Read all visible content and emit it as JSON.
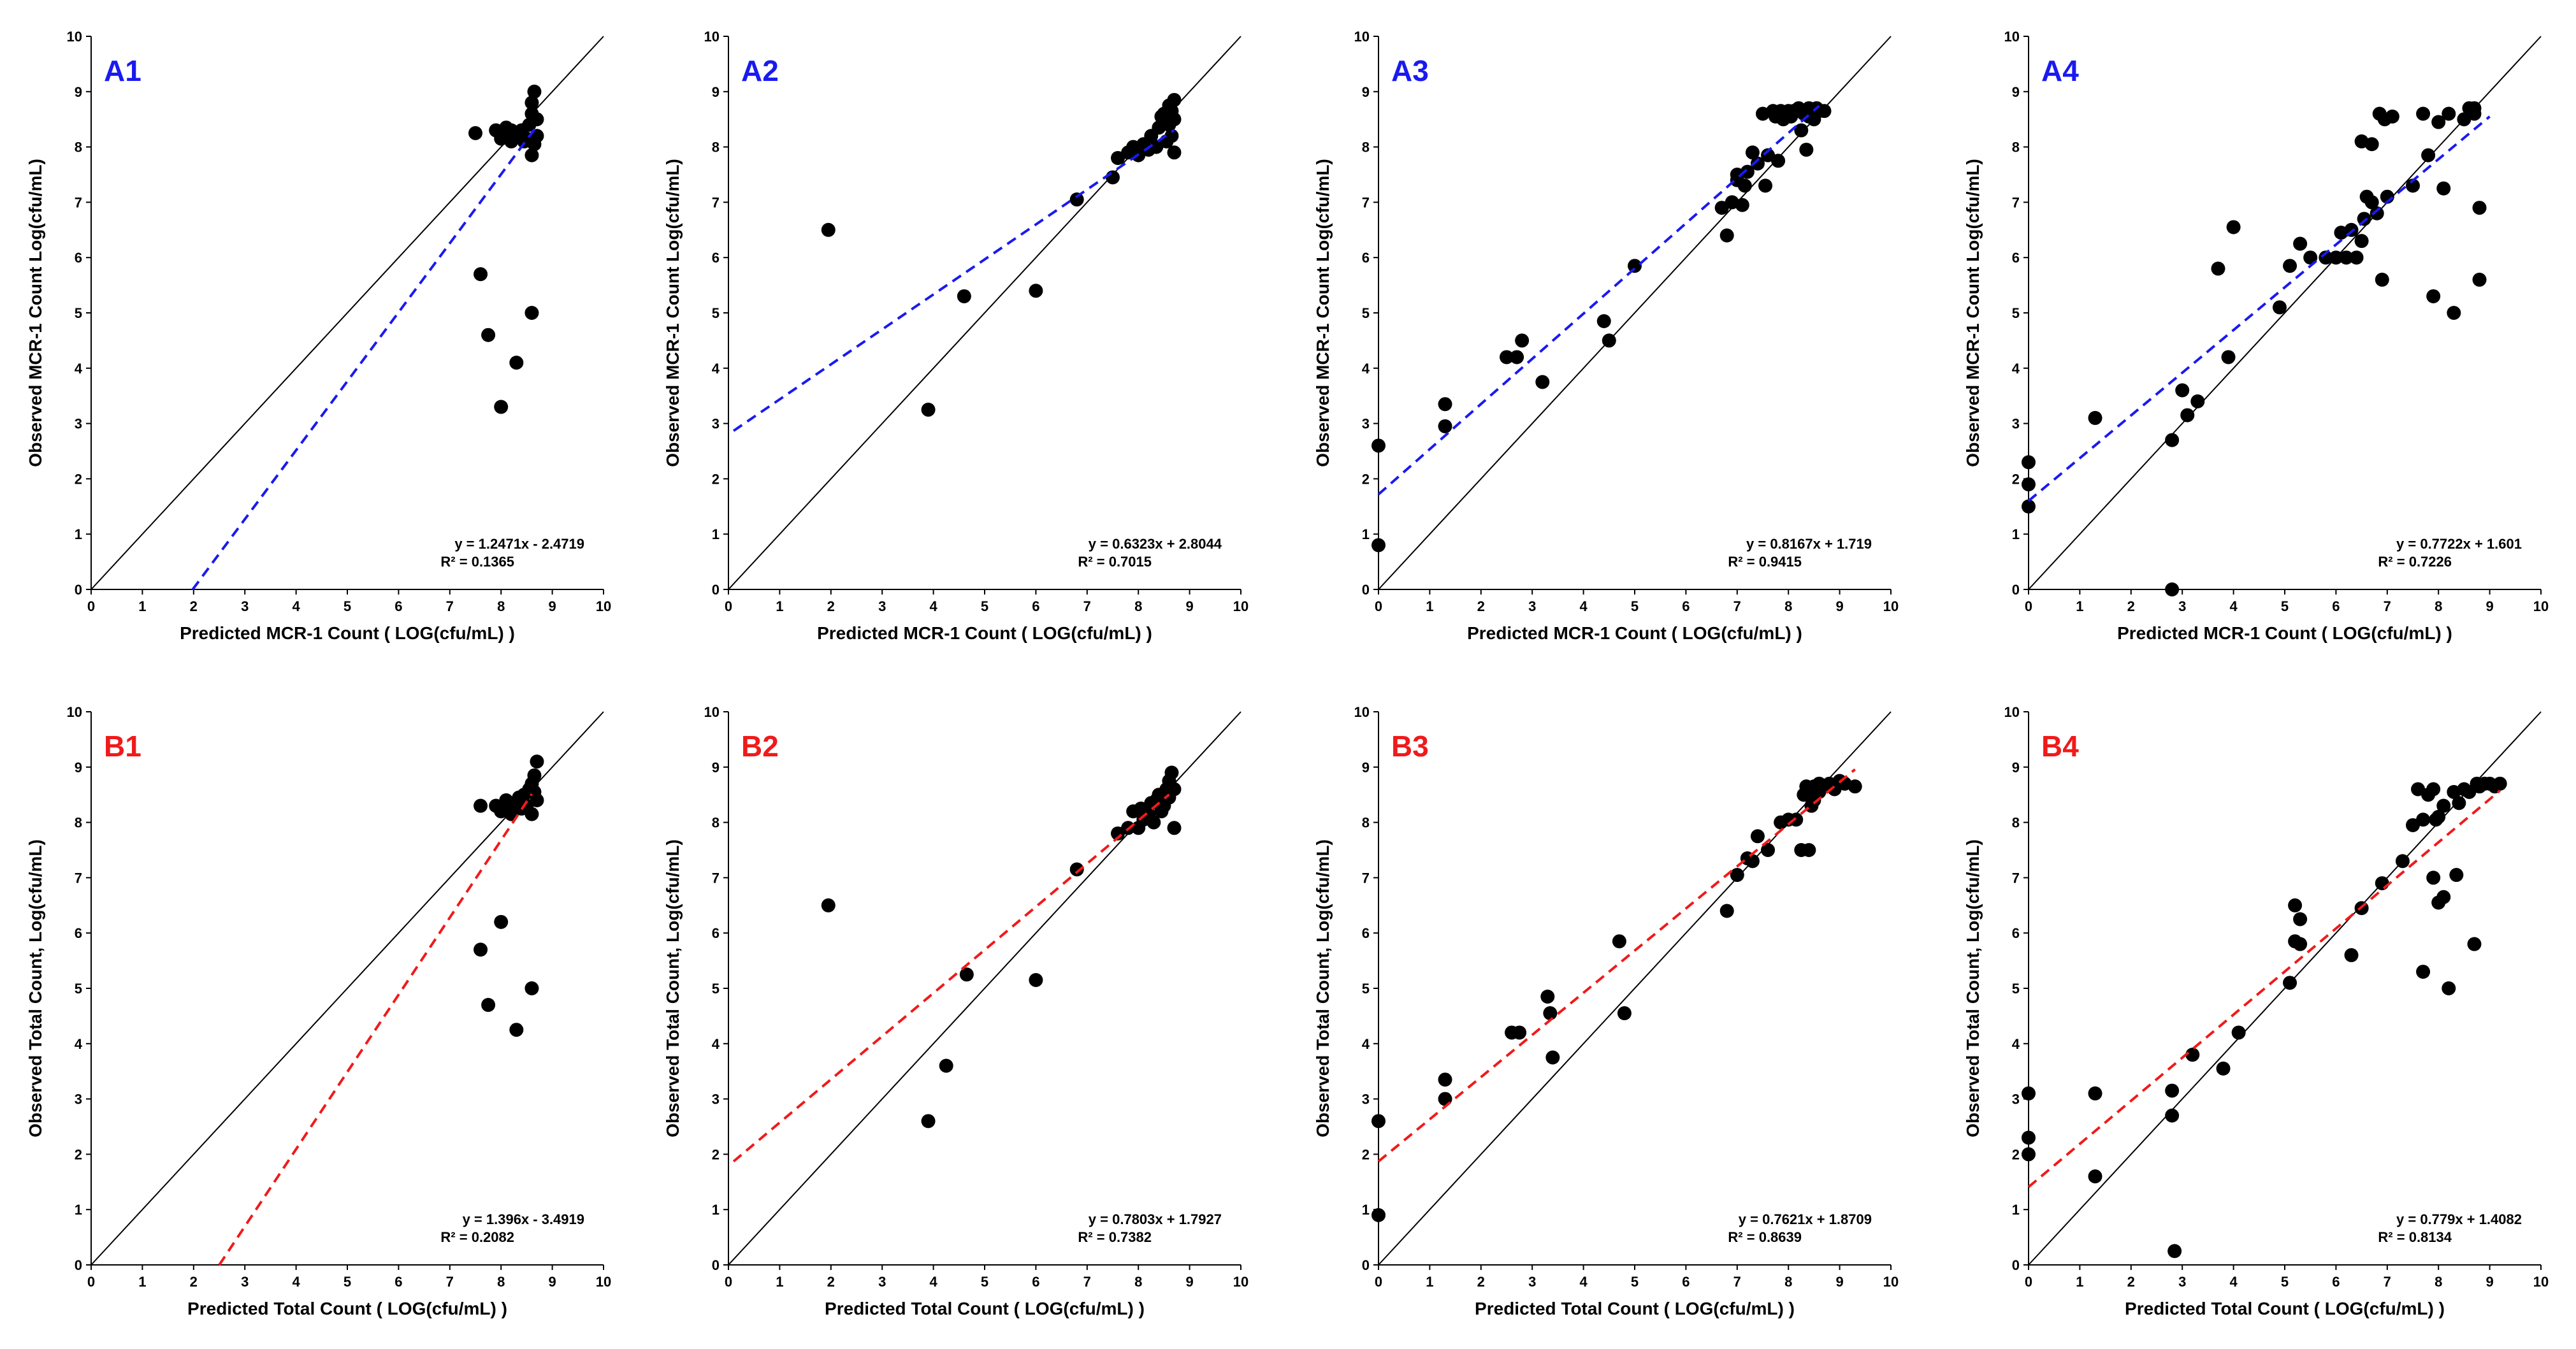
{
  "colors": {
    "row_a": "#1a1af0",
    "row_b": "#f01a1a",
    "points": "#000000",
    "identity_line": "#000000"
  },
  "chart_data": [
    {
      "type": "scatter",
      "panel": "A1",
      "row": "A",
      "xlabel": "Predicted MCR-1 Count ( LOG(cfu/mL) )",
      "ylabel": "Observed MCR-1 Count Log(cfu/mL)",
      "xlim": [
        0,
        10
      ],
      "ylim": [
        0,
        10
      ],
      "ticks": [
        "0",
        "1",
        "2",
        "3",
        "4",
        "5",
        "6",
        "7",
        "8",
        "9",
        "10"
      ],
      "equation": "y = 1.2471x - 2.4719",
      "r2": "R² = 0.1365",
      "fit": {
        "slope": 1.2471,
        "intercept": -2.4719,
        "x_range": [
          1.98,
          8.7
        ]
      },
      "points": [
        [
          7.5,
          8.25
        ],
        [
          7.9,
          8.3
        ],
        [
          8.0,
          8.15
        ],
        [
          8.1,
          8.35
        ],
        [
          8.2,
          8.1
        ],
        [
          8.3,
          8.2
        ],
        [
          8.4,
          8.3
        ],
        [
          8.5,
          8.15
        ],
        [
          8.55,
          8.4
        ],
        [
          8.6,
          8.6
        ],
        [
          8.6,
          8.8
        ],
        [
          8.65,
          9.0
        ],
        [
          8.7,
          8.5
        ],
        [
          8.7,
          8.2
        ],
        [
          8.65,
          8.05
        ],
        [
          8.6,
          7.85
        ],
        [
          8.45,
          8.1
        ],
        [
          8.2,
          8.3
        ],
        [
          8.0,
          8.2
        ],
        [
          7.6,
          5.7
        ],
        [
          7.75,
          4.6
        ],
        [
          8.6,
          5.0
        ],
        [
          8.3,
          4.1
        ],
        [
          8.0,
          3.3
        ]
      ]
    },
    {
      "type": "scatter",
      "panel": "A2",
      "row": "A",
      "xlabel": "Predicted MCR-1 Count ( LOG(cfu/mL) )",
      "ylabel": "Observed MCR-1 Count Log(cfu/mL)",
      "xlim": [
        0,
        10
      ],
      "ylim": [
        0,
        10
      ],
      "ticks": [
        "0",
        "1",
        "2",
        "3",
        "4",
        "5",
        "6",
        "7",
        "8",
        "9",
        "10"
      ],
      "equation": "y = 0.6323x + 2.8044",
      "r2": "R² = 0.7015",
      "fit": {
        "slope": 0.6323,
        "intercept": 2.8044,
        "x_range": [
          0.1,
          8.7
        ]
      },
      "points": [
        [
          1.95,
          6.5
        ],
        [
          3.9,
          3.25
        ],
        [
          4.6,
          5.3
        ],
        [
          6.0,
          5.4
        ],
        [
          6.8,
          7.05
        ],
        [
          7.5,
          7.45
        ],
        [
          7.6,
          7.8
        ],
        [
          7.8,
          7.9
        ],
        [
          7.9,
          8.0
        ],
        [
          8.0,
          7.85
        ],
        [
          8.1,
          8.05
        ],
        [
          8.2,
          7.95
        ],
        [
          8.25,
          8.2
        ],
        [
          8.35,
          8.0
        ],
        [
          8.4,
          8.35
        ],
        [
          8.45,
          8.55
        ],
        [
          8.5,
          8.6
        ],
        [
          8.55,
          8.1
        ],
        [
          8.6,
          8.4
        ],
        [
          8.6,
          8.75
        ],
        [
          8.65,
          8.2
        ],
        [
          8.7,
          7.9
        ],
        [
          8.7,
          8.5
        ],
        [
          8.7,
          8.85
        ],
        [
          8.65,
          8.65
        ]
      ]
    },
    {
      "type": "scatter",
      "panel": "A3",
      "row": "A",
      "xlabel": "Predicted MCR-1 Count ( LOG(cfu/mL) )",
      "ylabel": "Observed MCR-1 Count Log(cfu/mL)",
      "xlim": [
        0,
        10
      ],
      "ylim": [
        0,
        10
      ],
      "ticks": [
        "0",
        "1",
        "2",
        "3",
        "4",
        "5",
        "6",
        "7",
        "8",
        "9",
        "10"
      ],
      "equation": "y = 0.8167x + 1.719",
      "r2": "R² = 0.9415",
      "fit": {
        "slope": 0.8167,
        "intercept": 1.719,
        "x_range": [
          0.0,
          8.6
        ]
      },
      "points": [
        [
          0.0,
          2.6
        ],
        [
          0.0,
          0.8
        ],
        [
          1.3,
          3.35
        ],
        [
          1.3,
          2.95
        ],
        [
          2.5,
          4.2
        ],
        [
          2.7,
          4.2
        ],
        [
          2.8,
          4.5
        ],
        [
          3.2,
          3.75
        ],
        [
          4.4,
          4.85
        ],
        [
          4.5,
          4.5
        ],
        [
          5.0,
          5.85
        ],
        [
          6.7,
          6.9
        ],
        [
          6.8,
          6.4
        ],
        [
          6.9,
          7.0
        ],
        [
          7.0,
          7.5
        ],
        [
          7.0,
          7.4
        ],
        [
          7.1,
          6.95
        ],
        [
          7.15,
          7.3
        ],
        [
          7.2,
          7.55
        ],
        [
          7.3,
          7.9
        ],
        [
          7.4,
          7.7
        ],
        [
          7.5,
          8.6
        ],
        [
          7.55,
          7.3
        ],
        [
          7.6,
          7.85
        ],
        [
          7.7,
          8.65
        ],
        [
          7.75,
          8.55
        ],
        [
          7.8,
          7.75
        ],
        [
          7.85,
          8.65
        ],
        [
          7.9,
          8.5
        ],
        [
          8.0,
          8.65
        ],
        [
          8.05,
          8.55
        ],
        [
          8.1,
          8.65
        ],
        [
          8.2,
          8.7
        ],
        [
          8.25,
          8.3
        ],
        [
          8.3,
          8.6
        ],
        [
          8.35,
          7.95
        ],
        [
          8.4,
          8.7
        ],
        [
          8.5,
          8.5
        ],
        [
          8.55,
          8.7
        ],
        [
          8.6,
          8.65
        ],
        [
          8.7,
          8.65
        ],
        [
          8.4,
          8.55
        ]
      ]
    },
    {
      "type": "scatter",
      "panel": "A4",
      "row": "A",
      "xlabel": "Predicted MCR-1 Count ( LOG(cfu/mL) )",
      "ylabel": "Observed MCR-1 Count Log(cfu/mL)",
      "xlim": [
        0,
        10
      ],
      "ylim": [
        0,
        10
      ],
      "ticks": [
        "0",
        "1",
        "2",
        "3",
        "4",
        "5",
        "6",
        "7",
        "8",
        "9",
        "10"
      ],
      "equation": "y = 0.7722x + 1.601",
      "r2": "R² = 0.7226",
      "fit": {
        "slope": 0.7722,
        "intercept": 1.601,
        "x_range": [
          0.0,
          9.0
        ]
      },
      "points": [
        [
          0.0,
          2.3
        ],
        [
          0.0,
          1.9
        ],
        [
          0.0,
          1.5
        ],
        [
          1.3,
          3.1
        ],
        [
          2.8,
          2.7
        ],
        [
          2.8,
          0.0
        ],
        [
          3.0,
          3.6
        ],
        [
          3.1,
          3.15
        ],
        [
          3.3,
          3.4
        ],
        [
          3.7,
          5.8
        ],
        [
          3.9,
          4.2
        ],
        [
          4.0,
          6.55
        ],
        [
          4.9,
          5.1
        ],
        [
          5.1,
          5.85
        ],
        [
          5.3,
          6.25
        ],
        [
          5.5,
          6.0
        ],
        [
          5.8,
          6.0
        ],
        [
          6.0,
          6.0
        ],
        [
          6.1,
          6.45
        ],
        [
          6.2,
          6.0
        ],
        [
          6.3,
          6.5
        ],
        [
          6.4,
          6.0
        ],
        [
          6.5,
          6.3
        ],
        [
          6.5,
          8.1
        ],
        [
          6.55,
          6.7
        ],
        [
          6.6,
          7.1
        ],
        [
          6.7,
          8.05
        ],
        [
          6.7,
          7.0
        ],
        [
          6.8,
          6.8
        ],
        [
          6.85,
          8.6
        ],
        [
          6.9,
          5.6
        ],
        [
          6.95,
          8.5
        ],
        [
          7.0,
          7.1
        ],
        [
          7.1,
          8.55
        ],
        [
          7.5,
          7.3
        ],
        [
          7.7,
          8.6
        ],
        [
          7.8,
          7.85
        ],
        [
          7.9,
          5.3
        ],
        [
          8.0,
          8.45
        ],
        [
          8.1,
          7.25
        ],
        [
          8.2,
          8.6
        ],
        [
          8.3,
          5.0
        ],
        [
          8.5,
          8.5
        ],
        [
          8.6,
          8.7
        ],
        [
          8.7,
          8.7
        ],
        [
          8.8,
          6.9
        ],
        [
          8.8,
          5.6
        ],
        [
          8.7,
          8.6
        ]
      ]
    },
    {
      "type": "scatter",
      "panel": "B1",
      "row": "B",
      "xlabel": "Predicted Total Count ( LOG(cfu/mL) )",
      "ylabel": "Observed Total Count, Log(cfu/mL)",
      "xlim": [
        0,
        10
      ],
      "ylim": [
        0,
        10
      ],
      "ticks": [
        "0",
        "1",
        "2",
        "3",
        "4",
        "5",
        "6",
        "7",
        "8",
        "9",
        "10"
      ],
      "equation": "y = 1.396x - 3.4919",
      "r2": "R² = 0.2082",
      "fit": {
        "slope": 1.396,
        "intercept": -3.4919,
        "x_range": [
          2.5,
          8.6
        ]
      },
      "points": [
        [
          7.6,
          8.3
        ],
        [
          7.9,
          8.3
        ],
        [
          8.0,
          8.2
        ],
        [
          8.1,
          8.4
        ],
        [
          8.2,
          8.15
        ],
        [
          8.3,
          8.35
        ],
        [
          8.4,
          8.25
        ],
        [
          8.45,
          8.5
        ],
        [
          8.5,
          8.3
        ],
        [
          8.55,
          8.6
        ],
        [
          8.6,
          8.7
        ],
        [
          8.65,
          8.85
        ],
        [
          8.7,
          9.1
        ],
        [
          8.7,
          8.4
        ],
        [
          8.65,
          8.55
        ],
        [
          8.6,
          8.15
        ],
        [
          8.35,
          8.45
        ],
        [
          8.2,
          8.3
        ],
        [
          8.0,
          6.2
        ],
        [
          7.6,
          5.7
        ],
        [
          7.75,
          4.7
        ],
        [
          8.6,
          5.0
        ],
        [
          8.3,
          4.25
        ]
      ]
    },
    {
      "type": "scatter",
      "panel": "B2",
      "row": "B",
      "xlabel": "Predicted Total Count ( LOG(cfu/mL) )",
      "ylabel": "Observed Total Count, Log(cfu/mL)",
      "xlim": [
        0,
        10
      ],
      "ylim": [
        0,
        10
      ],
      "ticks": [
        "0",
        "1",
        "2",
        "3",
        "4",
        "5",
        "6",
        "7",
        "8",
        "9",
        "10"
      ],
      "equation": "y = 0.7803x + 1.7927",
      "r2": "R² = 0.7382",
      "fit": {
        "slope": 0.7803,
        "intercept": 1.7927,
        "x_range": [
          0.1,
          8.6
        ]
      },
      "points": [
        [
          1.95,
          6.5
        ],
        [
          3.9,
          2.6
        ],
        [
          4.25,
          3.6
        ],
        [
          4.65,
          5.25
        ],
        [
          6.0,
          5.15
        ],
        [
          6.8,
          7.15
        ],
        [
          7.6,
          7.8
        ],
        [
          7.8,
          7.9
        ],
        [
          7.9,
          8.2
        ],
        [
          8.0,
          7.9
        ],
        [
          8.05,
          8.25
        ],
        [
          8.1,
          8.05
        ],
        [
          8.2,
          8.15
        ],
        [
          8.25,
          8.35
        ],
        [
          8.3,
          8.0
        ],
        [
          8.35,
          8.4
        ],
        [
          8.4,
          8.5
        ],
        [
          8.45,
          8.2
        ],
        [
          8.5,
          8.3
        ],
        [
          8.55,
          8.6
        ],
        [
          8.6,
          8.75
        ],
        [
          8.6,
          8.45
        ],
        [
          8.65,
          8.9
        ],
        [
          8.7,
          8.6
        ],
        [
          8.7,
          7.9
        ],
        [
          8.55,
          8.45
        ]
      ]
    },
    {
      "type": "scatter",
      "panel": "B3",
      "row": "B",
      "xlabel": "Predicted Total Count ( LOG(cfu/mL) )",
      "ylabel": "Observed Total Count, Log(cfu/mL)",
      "xlim": [
        0,
        10
      ],
      "ylim": [
        0,
        10
      ],
      "ticks": [
        "0",
        "1",
        "2",
        "3",
        "4",
        "5",
        "6",
        "7",
        "8",
        "9",
        "10"
      ],
      "equation": "y = 0.7621x + 1.8709",
      "r2": "R² = 0.8639",
      "fit": {
        "slope": 0.7621,
        "intercept": 1.8709,
        "x_range": [
          0.0,
          9.3
        ]
      },
      "points": [
        [
          0.0,
          2.6
        ],
        [
          0.0,
          0.9
        ],
        [
          1.3,
          3.35
        ],
        [
          1.3,
          3.0
        ],
        [
          2.6,
          4.2
        ],
        [
          2.75,
          4.2
        ],
        [
          3.3,
          4.85
        ],
        [
          3.35,
          4.55
        ],
        [
          3.4,
          3.75
        ],
        [
          4.7,
          5.85
        ],
        [
          4.8,
          4.55
        ],
        [
          6.8,
          6.4
        ],
        [
          7.0,
          7.05
        ],
        [
          7.2,
          7.35
        ],
        [
          7.3,
          7.3
        ],
        [
          7.4,
          7.75
        ],
        [
          7.6,
          7.5
        ],
        [
          7.85,
          8.0
        ],
        [
          8.0,
          8.05
        ],
        [
          8.15,
          8.05
        ],
        [
          8.25,
          7.5
        ],
        [
          8.3,
          8.5
        ],
        [
          8.35,
          8.65
        ],
        [
          8.4,
          7.5
        ],
        [
          8.45,
          8.3
        ],
        [
          8.5,
          8.65
        ],
        [
          8.55,
          8.55
        ],
        [
          8.6,
          8.7
        ],
        [
          8.7,
          8.65
        ],
        [
          8.8,
          8.7
        ],
        [
          8.9,
          8.6
        ],
        [
          9.0,
          8.75
        ],
        [
          9.1,
          8.7
        ],
        [
          9.3,
          8.65
        ],
        [
          8.6,
          8.55
        ],
        [
          8.5,
          8.4
        ]
      ]
    },
    {
      "type": "scatter",
      "panel": "B4",
      "row": "B",
      "xlabel": "Predicted Total Count ( LOG(cfu/mL) )",
      "ylabel": "Observed Total Count, Log(cfu/mL)",
      "xlim": [
        0,
        10
      ],
      "ylim": [
        0,
        10
      ],
      "ticks": [
        "0",
        "1",
        "2",
        "3",
        "4",
        "5",
        "6",
        "7",
        "8",
        "9",
        "10"
      ],
      "equation": "y = 0.779x + 1.4082",
      "r2": "R² = 0.8134",
      "fit": {
        "slope": 0.779,
        "intercept": 1.4082,
        "x_range": [
          0.0,
          9.2
        ]
      },
      "points": [
        [
          0.0,
          3.1
        ],
        [
          0.0,
          2.3
        ],
        [
          0.0,
          2.0
        ],
        [
          1.3,
          3.1
        ],
        [
          1.3,
          1.6
        ],
        [
          2.8,
          3.15
        ],
        [
          2.8,
          2.7
        ],
        [
          2.85,
          0.25
        ],
        [
          3.2,
          3.8
        ],
        [
          3.8,
          3.55
        ],
        [
          4.1,
          4.2
        ],
        [
          5.1,
          5.1
        ],
        [
          5.2,
          6.5
        ],
        [
          5.2,
          5.85
        ],
        [
          5.3,
          6.25
        ],
        [
          5.3,
          5.8
        ],
        [
          6.3,
          5.6
        ],
        [
          6.5,
          6.45
        ],
        [
          6.9,
          6.9
        ],
        [
          7.3,
          7.3
        ],
        [
          7.5,
          7.95
        ],
        [
          7.6,
          8.6
        ],
        [
          7.7,
          8.05
        ],
        [
          7.7,
          5.3
        ],
        [
          7.8,
          8.5
        ],
        [
          7.9,
          7.0
        ],
        [
          7.95,
          8.05
        ],
        [
          8.0,
          6.55
        ],
        [
          8.1,
          6.65
        ],
        [
          8.1,
          8.3
        ],
        [
          8.2,
          5.0
        ],
        [
          8.3,
          8.55
        ],
        [
          8.35,
          7.05
        ],
        [
          8.4,
          8.35
        ],
        [
          8.5,
          8.6
        ],
        [
          8.6,
          8.55
        ],
        [
          8.7,
          5.8
        ],
        [
          8.75,
          8.7
        ],
        [
          8.8,
          8.65
        ],
        [
          8.9,
          8.7
        ],
        [
          9.0,
          8.7
        ],
        [
          9.1,
          8.65
        ],
        [
          9.2,
          8.7
        ],
        [
          7.9,
          8.6
        ],
        [
          8.0,
          8.1
        ]
      ]
    }
  ]
}
